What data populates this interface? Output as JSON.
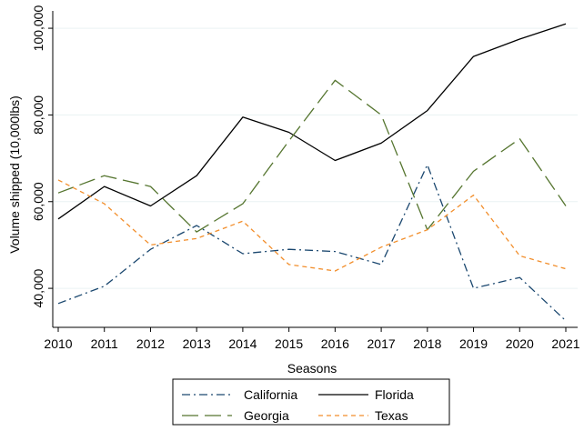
{
  "chart_data": {
    "type": "line",
    "title": "",
    "xlabel": "Seasons",
    "ylabel": "Volume shipped (10,000lbs)",
    "x": [
      2010,
      2011,
      2012,
      2013,
      2014,
      2015,
      2016,
      2017,
      2018,
      2019,
      2020,
      2021
    ],
    "x_tick_labels": [
      "2010",
      "2011",
      "2012",
      "2013",
      "2014",
      "2015",
      "2016",
      "2017",
      "2018",
      "2019",
      "2020",
      "2021"
    ],
    "y_ticks": [
      40000,
      60000,
      80000,
      100000
    ],
    "y_tick_labels": [
      "40,000",
      "60,000",
      "80,000",
      "100,000"
    ],
    "ylim": [
      31000,
      104000
    ],
    "xlim": [
      2010,
      2021
    ],
    "grid": "horizontal",
    "legend_position": "bottom",
    "series": [
      {
        "name": "California",
        "color": "#1a476f",
        "dash": "dash-dot",
        "values": [
          36500,
          40500,
          49000,
          54500,
          48000,
          49000,
          48500,
          45500,
          68500,
          40000,
          42500,
          32500
        ]
      },
      {
        "name": "Florida",
        "color": "#000000",
        "dash": "solid",
        "values": [
          56000,
          63500,
          59000,
          66000,
          79500,
          76000,
          69500,
          73500,
          81000,
          93500,
          97500,
          101000
        ]
      },
      {
        "name": "Georgia",
        "color": "#55752f",
        "dash": "long-dash",
        "values": [
          62000,
          66000,
          63500,
          53000,
          59500,
          74000,
          88000,
          80000,
          53500,
          67000,
          74500,
          59000
        ]
      },
      {
        "name": "Texas",
        "color": "#f28e2b",
        "dash": "short-dash",
        "values": [
          65000,
          59500,
          50000,
          51500,
          55500,
          45500,
          44000,
          49500,
          53500,
          61500,
          47500,
          44500
        ]
      }
    ]
  }
}
